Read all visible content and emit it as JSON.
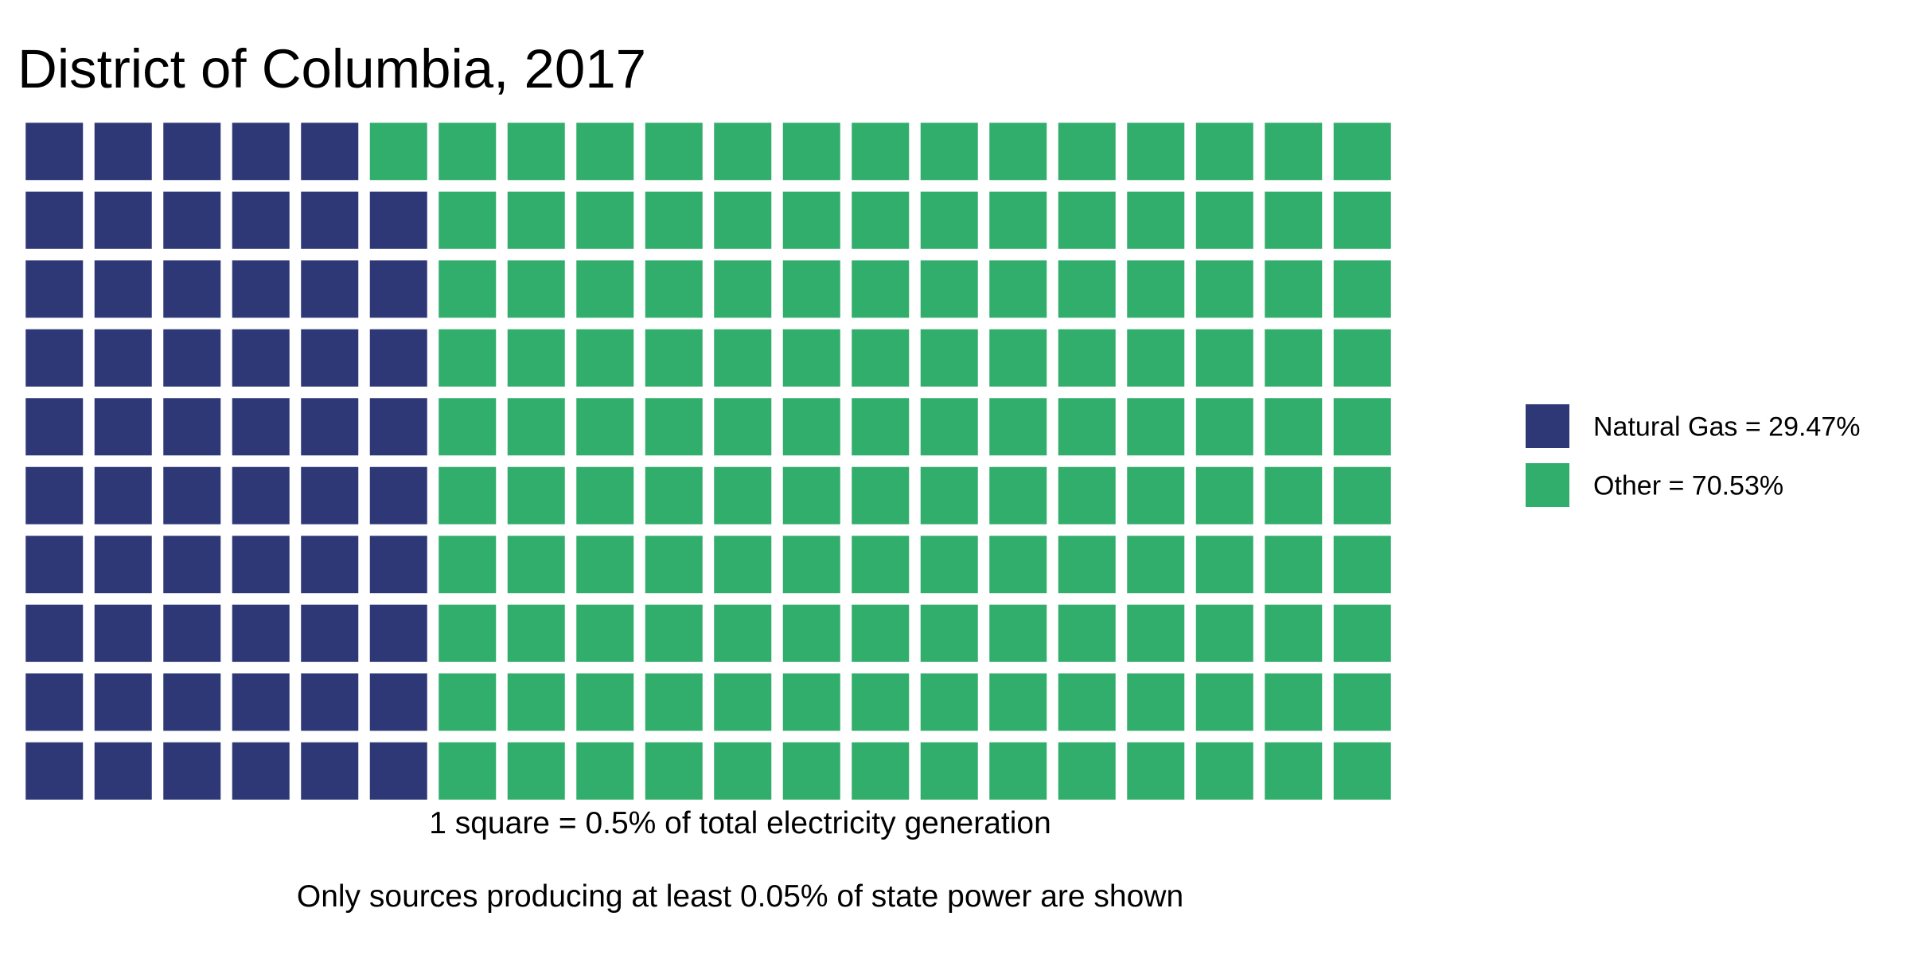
{
  "chart_data": {
    "type": "waffle",
    "title": "District of Columbia, 2017",
    "xlabel": "1 square = 0.5% of total electricity generation",
    "caption": "Only sources producing at least 0.05% of state power are shown",
    "grid": {
      "rows": 10,
      "cols": 20,
      "fill_order": "column-major-bottom-up"
    },
    "unit_value_percent": 0.5,
    "series": [
      {
        "name": "Natural Gas",
        "value": 29.47,
        "squares": 59,
        "color": "#2f3877",
        "legend_label": "Natural Gas = 29.47%"
      },
      {
        "name": "Other",
        "value": 70.53,
        "squares": 141,
        "color": "#31ae6b",
        "legend_label": "Other = 70.53%"
      }
    ],
    "legend_position": "right",
    "background_color": "#ffffff"
  }
}
